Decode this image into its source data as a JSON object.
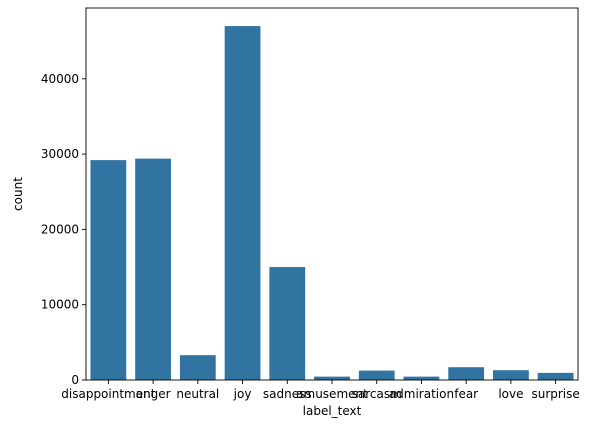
{
  "colors": {
    "bar": "#3274a1",
    "axis": "#000000",
    "background": "#ffffff"
  },
  "chart_data": {
    "type": "bar",
    "title": "",
    "xlabel": "label_text",
    "ylabel": "count",
    "grid": false,
    "legend": "none",
    "ylim": [
      0,
      49400
    ],
    "yticks": [
      0,
      10000,
      20000,
      30000,
      40000
    ],
    "ytick_labels": [
      "0",
      "10000",
      "20000",
      "30000",
      "40000"
    ],
    "categories": [
      "disappointment",
      "anger",
      "neutral",
      "joy",
      "sadness",
      "amusement",
      "sarcasm",
      "admiration",
      "fear",
      "love",
      "surprise"
    ],
    "values": [
      29200,
      29400,
      3300,
      47000,
      15000,
      450,
      1250,
      450,
      1700,
      1300,
      950
    ]
  }
}
